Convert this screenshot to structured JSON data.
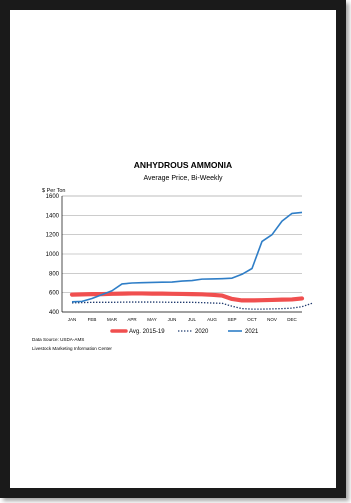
{
  "chart_data": {
    "type": "line",
    "title": "ANHYDROUS AMMONIA",
    "subtitle": "Average Price, Bi-Weekly",
    "ylabel": "$ Per Ton",
    "xlabel": "",
    "ylim": [
      400,
      1600
    ],
    "yticks": [
      400,
      600,
      800,
      1000,
      1200,
      1400,
      1600
    ],
    "y_tick_labels": [
      "400",
      "600",
      "800",
      "1000",
      "1200",
      "1400",
      "1600"
    ],
    "categories": [
      "JAN",
      "FEB",
      "MAR",
      "APR",
      "MAY",
      "JUN",
      "JUL",
      "AUG",
      "SEP",
      "OCT",
      "NOV",
      "DEC"
    ],
    "grid": true,
    "legend_position": "bottom",
    "series": [
      {
        "name": "Avg. 2015-19",
        "color": "#f04f4f",
        "style": "thick",
        "x": [
          0,
          0.5,
          1,
          1.5,
          2,
          2.5,
          3,
          3.5,
          4,
          4.5,
          5,
          5.5,
          6,
          6.5,
          7,
          7.5,
          8,
          8.5,
          9,
          9.5,
          10,
          10.5,
          11,
          11.5
        ],
        "values": [
          580,
          582,
          585,
          585,
          588,
          590,
          592,
          592,
          590,
          590,
          588,
          587,
          585,
          583,
          578,
          570,
          535,
          520,
          520,
          522,
          525,
          528,
          530,
          540
        ]
      },
      {
        "name": "2020",
        "color": "#1f3a6e",
        "style": "dotted",
        "x": [
          0,
          0.5,
          1,
          1.5,
          2,
          2.5,
          3,
          3.5,
          4,
          4.5,
          5,
          5.5,
          6,
          6.5,
          7,
          7.5,
          8,
          8.5,
          9,
          9.5,
          10,
          10.5,
          11,
          11.5,
          12
        ],
        "values": [
          495,
          497,
          500,
          500,
          500,
          502,
          503,
          503,
          503,
          502,
          500,
          500,
          500,
          497,
          493,
          490,
          460,
          435,
          430,
          430,
          432,
          435,
          440,
          455,
          490
        ]
      },
      {
        "name": "2021",
        "color": "#2f7ec7",
        "style": "solid",
        "x": [
          0,
          0.5,
          1,
          1.5,
          2,
          2.5,
          3,
          3.5,
          4,
          4.5,
          5,
          5.5,
          6,
          6.5,
          7,
          7.5,
          8,
          8.5,
          9,
          9.5,
          10,
          10.5,
          11,
          11.5
        ],
        "values": [
          505,
          510,
          540,
          580,
          620,
          690,
          700,
          703,
          706,
          708,
          710,
          720,
          725,
          740,
          742,
          745,
          750,
          790,
          850,
          1130,
          1200,
          1340,
          1420,
          1430
        ]
      }
    ]
  },
  "footer": {
    "source": "Data Source:  USDA-AMS",
    "center": "Livestock Marketing Information Center"
  }
}
